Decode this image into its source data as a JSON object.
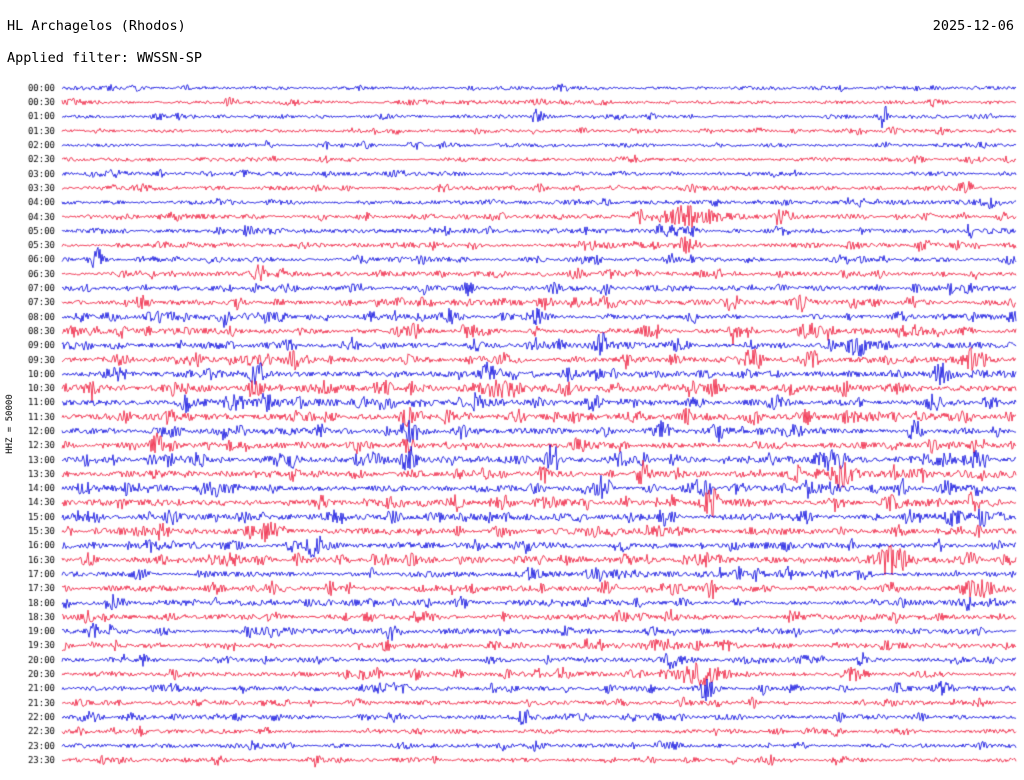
{
  "header": {
    "station_title": "HL Archagelos (Rhodos)",
    "date": "2025-12-06",
    "filter_label": "Applied filter: WWSSN-SP"
  },
  "chart_data": {
    "type": "line",
    "subtype": "helicorder-dayplot",
    "title": "HL Archagelos (Rhodos)",
    "date": "2025-12-06",
    "filter": "WWSSN-SP",
    "ylabel": "HHZ = 50000",
    "minutes_per_row": 30,
    "num_rows": 48,
    "trace_colors": {
      "blue": "#0000dd",
      "red": "#ee1133"
    },
    "rows": [
      {
        "label": "00:00",
        "color": "blue",
        "activity": 0.25
      },
      {
        "label": "00:30",
        "color": "red",
        "activity": 0.28
      },
      {
        "label": "01:00",
        "color": "blue",
        "activity": 0.28
      },
      {
        "label": "01:30",
        "color": "red",
        "activity": 0.25
      },
      {
        "label": "02:00",
        "color": "blue",
        "activity": 0.25
      },
      {
        "label": "02:30",
        "color": "red",
        "activity": 0.28
      },
      {
        "label": "03:00",
        "color": "blue",
        "activity": 0.3
      },
      {
        "label": "03:30",
        "color": "red",
        "activity": 0.32
      },
      {
        "label": "04:00",
        "color": "blue",
        "activity": 0.42
      },
      {
        "label": "04:30",
        "color": "red",
        "activity": 0.48
      },
      {
        "label": "05:00",
        "color": "blue",
        "activity": 0.45
      },
      {
        "label": "05:30",
        "color": "red",
        "activity": 0.5
      },
      {
        "label": "06:00",
        "color": "blue",
        "activity": 0.5
      },
      {
        "label": "06:30",
        "color": "red",
        "activity": 0.52
      },
      {
        "label": "07:00",
        "color": "blue",
        "activity": 0.6
      },
      {
        "label": "07:30",
        "color": "red",
        "activity": 0.65
      },
      {
        "label": "08:00",
        "color": "blue",
        "activity": 0.65
      },
      {
        "label": "08:30",
        "color": "red",
        "activity": 0.72
      },
      {
        "label": "09:00",
        "color": "blue",
        "activity": 0.85
      },
      {
        "label": "09:30",
        "color": "red",
        "activity": 0.85
      },
      {
        "label": "10:00",
        "color": "blue",
        "activity": 0.9
      },
      {
        "label": "10:30",
        "color": "red",
        "activity": 0.9
      },
      {
        "label": "11:00",
        "color": "blue",
        "activity": 0.9
      },
      {
        "label": "11:30",
        "color": "red",
        "activity": 0.85
      },
      {
        "label": "12:00",
        "color": "blue",
        "activity": 0.8
      },
      {
        "label": "12:30",
        "color": "red",
        "activity": 0.8
      },
      {
        "label": "13:00",
        "color": "blue",
        "activity": 0.85
      },
      {
        "label": "13:30",
        "color": "red",
        "activity": 0.85
      },
      {
        "label": "14:00",
        "color": "blue",
        "activity": 0.85
      },
      {
        "label": "14:30",
        "color": "red",
        "activity": 0.85
      },
      {
        "label": "15:00",
        "color": "blue",
        "activity": 0.8
      },
      {
        "label": "15:30",
        "color": "red",
        "activity": 0.8
      },
      {
        "label": "16:00",
        "color": "blue",
        "activity": 0.75
      },
      {
        "label": "16:30",
        "color": "red",
        "activity": 0.75
      },
      {
        "label": "17:00",
        "color": "blue",
        "activity": 0.7
      },
      {
        "label": "17:30",
        "color": "red",
        "activity": 0.7
      },
      {
        "label": "18:00",
        "color": "blue",
        "activity": 0.68
      },
      {
        "label": "18:30",
        "color": "red",
        "activity": 0.65
      },
      {
        "label": "19:00",
        "color": "blue",
        "activity": 0.65
      },
      {
        "label": "19:30",
        "color": "red",
        "activity": 0.6
      },
      {
        "label": "20:00",
        "color": "blue",
        "activity": 0.55
      },
      {
        "label": "20:30",
        "color": "red",
        "activity": 0.55
      },
      {
        "label": "21:00",
        "color": "blue",
        "activity": 0.5
      },
      {
        "label": "21:30",
        "color": "red",
        "activity": 0.45
      },
      {
        "label": "22:00",
        "color": "blue",
        "activity": 0.45
      },
      {
        "label": "22:30",
        "color": "red",
        "activity": 0.4
      },
      {
        "label": "23:00",
        "color": "blue",
        "activity": 0.35
      },
      {
        "label": "23:30",
        "color": "red",
        "activity": 0.4
      }
    ],
    "events": [
      {
        "row": "00:30",
        "x": 0.176,
        "amp": 6,
        "w": 5
      },
      {
        "row": "01:00",
        "x": 0.862,
        "amp": 13,
        "w": 4
      },
      {
        "row": "03:30",
        "x": 0.948,
        "amp": 7,
        "w": 8
      },
      {
        "row": "04:30",
        "x": 0.605,
        "amp": 5,
        "w": 6
      },
      {
        "row": "04:30",
        "x": 0.657,
        "amp": 9,
        "w": 28
      },
      {
        "row": "04:30",
        "x": 0.75,
        "amp": 5,
        "w": 5
      },
      {
        "row": "05:00",
        "x": 0.66,
        "amp": 5,
        "w": 10
      },
      {
        "row": "05:30",
        "x": 0.655,
        "amp": 7,
        "w": 12
      },
      {
        "row": "05:30",
        "x": 0.9,
        "amp": 5,
        "w": 5
      },
      {
        "row": "06:00",
        "x": 0.036,
        "amp": 9,
        "w": 5
      },
      {
        "row": "06:30",
        "x": 0.205,
        "amp": 7,
        "w": 6
      },
      {
        "row": "07:00",
        "x": 0.2,
        "amp": 6,
        "w": 5
      },
      {
        "row": "07:00",
        "x": 0.425,
        "amp": 6,
        "w": 5
      },
      {
        "row": "07:30",
        "x": 0.78,
        "amp": 5,
        "w": 5
      },
      {
        "row": "08:00",
        "x": 0.17,
        "amp": 8,
        "w": 6
      },
      {
        "row": "08:30",
        "x": 0.37,
        "amp": 6,
        "w": 5
      },
      {
        "row": "09:00",
        "x": 0.305,
        "amp": 7,
        "w": 5
      },
      {
        "row": "10:30",
        "x": 0.82,
        "amp": 7,
        "w": 6
      },
      {
        "row": "11:00",
        "x": 0.13,
        "amp": 7,
        "w": 6
      },
      {
        "row": "11:30",
        "x": 0.655,
        "amp": 7,
        "w": 5
      },
      {
        "row": "12:30",
        "x": 0.31,
        "amp": 6,
        "w": 5
      },
      {
        "row": "13:00",
        "x": 0.365,
        "amp": 9,
        "w": 7
      },
      {
        "row": "13:00",
        "x": 0.795,
        "amp": 8,
        "w": 8
      },
      {
        "row": "13:30",
        "x": 0.82,
        "amp": 9,
        "w": 14
      },
      {
        "row": "14:00",
        "x": 0.665,
        "amp": 7,
        "w": 6
      },
      {
        "row": "14:30",
        "x": 0.955,
        "amp": 10,
        "w": 6
      },
      {
        "row": "15:00",
        "x": 0.63,
        "amp": 7,
        "w": 8
      },
      {
        "row": "16:00",
        "x": 0.265,
        "amp": 8,
        "w": 7
      },
      {
        "row": "16:30",
        "x": 0.87,
        "amp": 12,
        "w": 16
      },
      {
        "row": "16:30",
        "x": 0.955,
        "amp": 7,
        "w": 6
      },
      {
        "row": "17:30",
        "x": 0.22,
        "amp": 6,
        "w": 5
      },
      {
        "row": "18:00",
        "x": 0.05,
        "amp": 6,
        "w": 5
      },
      {
        "row": "18:30",
        "x": 0.64,
        "amp": 5,
        "w": 5
      },
      {
        "row": "19:00",
        "x": 0.345,
        "amp": 6,
        "w": 5
      },
      {
        "row": "20:30",
        "x": 0.67,
        "amp": 10,
        "w": 26
      },
      {
        "row": "20:30",
        "x": 0.83,
        "amp": 6,
        "w": 12
      },
      {
        "row": "21:00",
        "x": 0.675,
        "amp": 11,
        "w": 8
      },
      {
        "row": "21:00",
        "x": 0.875,
        "amp": 6,
        "w": 5
      },
      {
        "row": "22:00",
        "x": 0.485,
        "amp": 9,
        "w": 6
      },
      {
        "row": "23:30",
        "x": 0.265,
        "amp": 5,
        "w": 5
      }
    ]
  }
}
